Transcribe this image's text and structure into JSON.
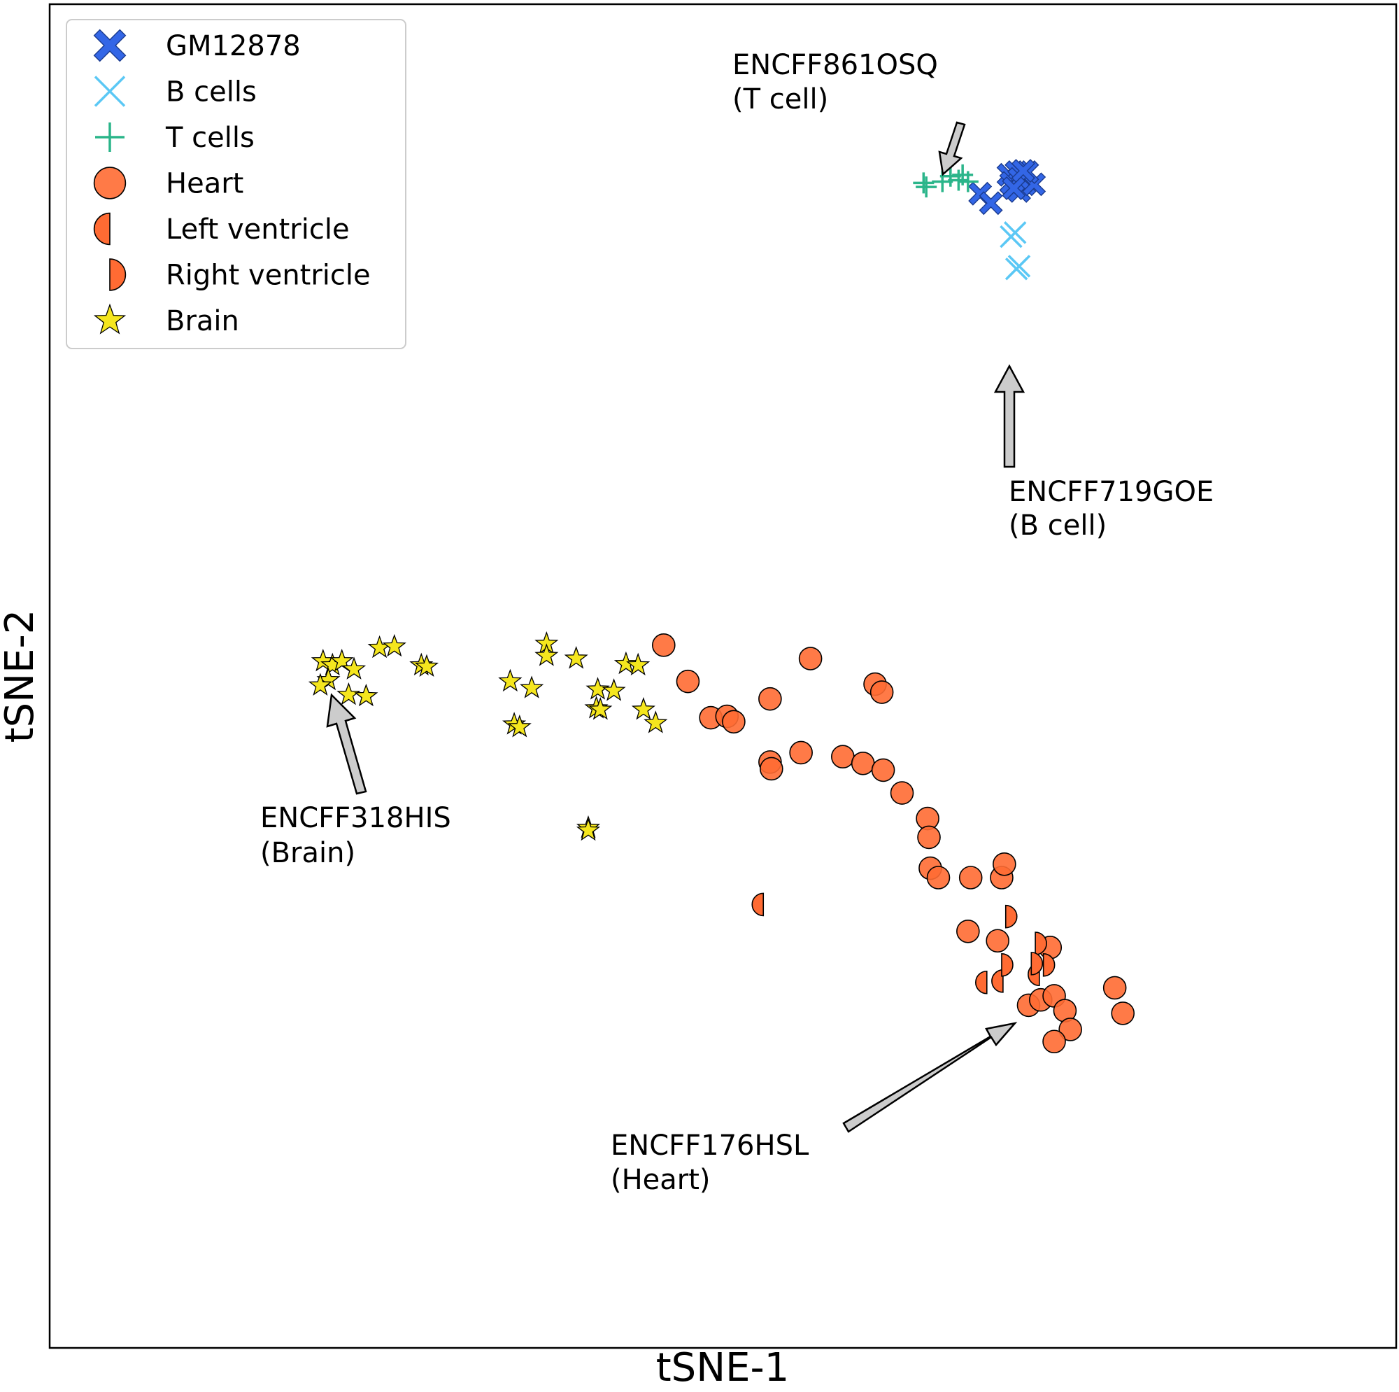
{
  "chart_data": {
    "type": "scatter",
    "xlabel": "tSNE-1",
    "ylabel": "tSNE-2",
    "xlim": [
      0,
      100
    ],
    "ylim": [
      0,
      100
    ],
    "grid": false,
    "ticks": false,
    "legend_position": "top-left",
    "series": [
      {
        "name": "GM12878",
        "marker": "X",
        "color": "#3366e6",
        "points": [
          [
            71.2,
            87.3
          ],
          [
            71.8,
            87.5
          ],
          [
            71.4,
            86.7
          ],
          [
            72.0,
            86.1
          ],
          [
            72.4,
            86.6
          ],
          [
            72.0,
            87.0
          ],
          [
            73.1,
            86.6
          ],
          [
            72.6,
            87.5
          ],
          [
            71.6,
            86.3
          ],
          [
            69.1,
            85.9
          ],
          [
            69.9,
            85.2
          ],
          [
            72.3,
            87.6
          ]
        ]
      },
      {
        "name": "B cells",
        "marker": "x",
        "color": "#5bc8f5",
        "points": [
          [
            71.4,
            82.7
          ],
          [
            71.7,
            83.0
          ],
          [
            71.8,
            80.3
          ],
          [
            72.0,
            80.5
          ]
        ]
      },
      {
        "name": "T cells",
        "marker": "+",
        "color": "#2bb58a",
        "points": [
          [
            64.9,
            86.7
          ],
          [
            65.1,
            86.4
          ],
          [
            66.3,
            86.8
          ],
          [
            66.9,
            87.2
          ],
          [
            67.5,
            86.9
          ],
          [
            68.2,
            86.8
          ],
          [
            67.8,
            87.3
          ]
        ]
      },
      {
        "name": "Heart",
        "marker": "circle",
        "color": "#ff6b33",
        "points": [
          [
            45.6,
            52.3
          ],
          [
            47.4,
            49.6
          ],
          [
            49.1,
            46.9
          ],
          [
            50.3,
            47.0
          ],
          [
            50.8,
            46.6
          ],
          [
            53.5,
            48.3
          ],
          [
            53.5,
            43.6
          ],
          [
            53.6,
            43.1
          ],
          [
            56.5,
            51.3
          ],
          [
            55.8,
            44.3
          ],
          [
            58.9,
            44.0
          ],
          [
            61.3,
            49.4
          ],
          [
            61.8,
            48.8
          ],
          [
            60.4,
            43.5
          ],
          [
            61.9,
            43.0
          ],
          [
            63.3,
            41.3
          ],
          [
            65.2,
            39.4
          ],
          [
            65.3,
            38.0
          ],
          [
            65.4,
            35.7
          ],
          [
            66.0,
            35.0
          ],
          [
            68.4,
            35.0
          ],
          [
            70.7,
            35.0
          ],
          [
            70.9,
            36.0
          ],
          [
            68.2,
            31.0
          ],
          [
            70.4,
            30.3
          ],
          [
            74.3,
            29.8
          ],
          [
            72.7,
            25.5
          ],
          [
            73.6,
            25.9
          ],
          [
            74.6,
            26.2
          ],
          [
            75.4,
            25.1
          ],
          [
            75.8,
            23.7
          ],
          [
            74.6,
            22.8
          ],
          [
            79.1,
            26.8
          ],
          [
            79.7,
            24.9
          ]
        ]
      },
      {
        "name": "Left ventricle",
        "marker": "left-half-circle",
        "color": "#ff6b33",
        "points": [
          [
            53.0,
            33.0
          ],
          [
            69.6,
            27.2
          ],
          [
            70.8,
            27.3
          ],
          [
            73.5,
            27.8
          ]
        ]
      },
      {
        "name": "Right ventricle",
        "marker": "right-half-circle",
        "color": "#ff6b33",
        "points": [
          [
            71.0,
            32.1
          ],
          [
            73.2,
            30.1
          ],
          [
            70.7,
            28.5
          ],
          [
            72.9,
            28.6
          ],
          [
            73.8,
            28.5
          ]
        ]
      },
      {
        "name": "Brain",
        "marker": "star",
        "color": "#f5e61e",
        "points": [
          [
            20.3,
            51.1
          ],
          [
            21.0,
            50.8
          ],
          [
            21.7,
            51.1
          ],
          [
            22.6,
            50.5
          ],
          [
            24.5,
            52.1
          ],
          [
            25.6,
            52.2
          ],
          [
            27.6,
            50.8
          ],
          [
            28.0,
            50.7
          ],
          [
            20.7,
            49.7
          ],
          [
            20.1,
            49.3
          ],
          [
            22.2,
            48.6
          ],
          [
            23.5,
            48.5
          ],
          [
            34.2,
            49.6
          ],
          [
            35.8,
            49.1
          ],
          [
            36.9,
            52.4
          ],
          [
            36.9,
            51.5
          ],
          [
            39.1,
            51.3
          ],
          [
            42.8,
            50.9
          ],
          [
            43.7,
            50.8
          ],
          [
            34.5,
            46.4
          ],
          [
            34.9,
            46.2
          ],
          [
            40.7,
            49.0
          ],
          [
            41.9,
            48.9
          ],
          [
            40.6,
            47.6
          ],
          [
            40.9,
            47.5
          ],
          [
            44.1,
            47.5
          ],
          [
            45.0,
            46.5
          ],
          [
            40.0,
            38.7
          ],
          [
            40.0,
            38.5
          ]
        ]
      }
    ],
    "annotations": [
      {
        "line1": "ENCFF861OSQ",
        "line2": "(T cell)",
        "target": [
          66.9,
          87.2
        ]
      },
      {
        "line1": "ENCFF719GOE",
        "line2": "(B cell)",
        "target": [
          72.0,
          80.5
        ]
      },
      {
        "line1": "ENCFF318HIS",
        "line2": "(Brain)",
        "target": [
          20.9,
          48.8
        ]
      },
      {
        "line1": "ENCFF176HSL",
        "line2": "(Heart)",
        "target": [
          72.7,
          25.5
        ]
      }
    ]
  }
}
